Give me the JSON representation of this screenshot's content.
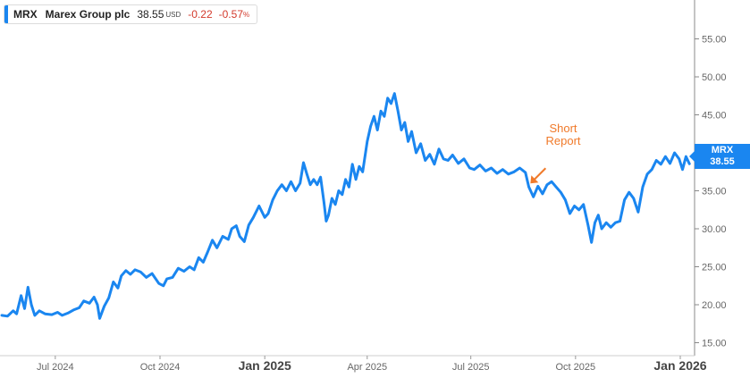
{
  "legend": {
    "ticker": "MRX",
    "name": "Marex Group plc",
    "price": "38.55",
    "currency": "USD",
    "change": "-0.22",
    "change_pct": "-0.57",
    "pct_sign": "%"
  },
  "price_tag": {
    "ticker": "MRX",
    "price": "38.55"
  },
  "annotation": {
    "line1": "Short",
    "line2": "Report",
    "date": "2025-08-20"
  },
  "colors": {
    "line": "#1a86f0",
    "annotation": "#f07a2a",
    "negative": "#d33a2c",
    "axis": "#666666"
  },
  "chart_data": {
    "type": "line",
    "title": "",
    "xlabel": "",
    "ylabel": "",
    "ylim": [
      14,
      58
    ],
    "xlim": [
      "2024-05-15",
      "2026-01-12"
    ],
    "y_axis_position": "right",
    "y_ticks": [
      "15.00",
      "20.00",
      "25.00",
      "30.00",
      "35.00",
      "40.00",
      "45.00",
      "50.00",
      "55.00"
    ],
    "x_ticks": [
      {
        "date": "2024-07-01",
        "label": "Jul 2024",
        "bold": false
      },
      {
        "date": "2024-10-01",
        "label": "Oct 2024",
        "bold": false
      },
      {
        "date": "2025-01-01",
        "label": "Jan 2025",
        "bold": true
      },
      {
        "date": "2025-04-01",
        "label": "Apr 2025",
        "bold": false
      },
      {
        "date": "2025-07-01",
        "label": "Jul 2025",
        "bold": false
      },
      {
        "date": "2025-10-01",
        "label": "Oct 2025",
        "bold": false
      },
      {
        "date": "2026-01-01",
        "label": "Jan 2026",
        "bold": true
      }
    ],
    "series": [
      {
        "name": "MRX",
        "points": [
          [
            "2024-05-15",
            18.6
          ],
          [
            "2024-05-20",
            18.5
          ],
          [
            "2024-05-25",
            19.2
          ],
          [
            "2024-05-28",
            18.8
          ],
          [
            "2024-06-01",
            21.2
          ],
          [
            "2024-06-04",
            19.5
          ],
          [
            "2024-06-07",
            22.3
          ],
          [
            "2024-06-10",
            20.0
          ],
          [
            "2024-06-13",
            18.6
          ],
          [
            "2024-06-17",
            19.2
          ],
          [
            "2024-06-22",
            18.8
          ],
          [
            "2024-06-28",
            18.7
          ],
          [
            "2024-07-03",
            19.0
          ],
          [
            "2024-07-07",
            18.6
          ],
          [
            "2024-07-12",
            18.9
          ],
          [
            "2024-07-17",
            19.3
          ],
          [
            "2024-07-22",
            19.6
          ],
          [
            "2024-07-26",
            20.5
          ],
          [
            "2024-07-31",
            20.2
          ],
          [
            "2024-08-04",
            21.0
          ],
          [
            "2024-08-07",
            20.0
          ],
          [
            "2024-08-09",
            18.2
          ],
          [
            "2024-08-13",
            19.8
          ],
          [
            "2024-08-17",
            20.9
          ],
          [
            "2024-08-21",
            23.0
          ],
          [
            "2024-08-25",
            22.2
          ],
          [
            "2024-08-28",
            23.8
          ],
          [
            "2024-09-01",
            24.5
          ],
          [
            "2024-09-05",
            24.0
          ],
          [
            "2024-09-09",
            24.6
          ],
          [
            "2024-09-14",
            24.3
          ],
          [
            "2024-09-19",
            23.6
          ],
          [
            "2024-09-24",
            24.1
          ],
          [
            "2024-09-30",
            22.8
          ],
          [
            "2024-10-04",
            22.5
          ],
          [
            "2024-10-07",
            23.4
          ],
          [
            "2024-10-12",
            23.6
          ],
          [
            "2024-10-17",
            24.8
          ],
          [
            "2024-10-22",
            24.4
          ],
          [
            "2024-10-27",
            25.0
          ],
          [
            "2024-10-31",
            24.6
          ],
          [
            "2024-11-04",
            26.2
          ],
          [
            "2024-11-08",
            25.6
          ],
          [
            "2024-11-12",
            27.0
          ],
          [
            "2024-11-16",
            28.5
          ],
          [
            "2024-11-20",
            27.5
          ],
          [
            "2024-11-25",
            29.0
          ],
          [
            "2024-11-30",
            28.6
          ],
          [
            "2024-12-03",
            30.0
          ],
          [
            "2024-12-07",
            30.4
          ],
          [
            "2024-12-10",
            29.0
          ],
          [
            "2024-12-14",
            28.3
          ],
          [
            "2024-12-18",
            30.5
          ],
          [
            "2024-12-22",
            31.5
          ],
          [
            "2024-12-27",
            33.0
          ],
          [
            "2025-01-01",
            31.5
          ],
          [
            "2025-01-04",
            32.0
          ],
          [
            "2025-01-08",
            33.8
          ],
          [
            "2025-01-12",
            35.0
          ],
          [
            "2025-01-16",
            35.8
          ],
          [
            "2025-01-20",
            35.0
          ],
          [
            "2025-01-24",
            36.2
          ],
          [
            "2025-01-28",
            35.0
          ],
          [
            "2025-02-01",
            36.0
          ],
          [
            "2025-02-04",
            38.7
          ],
          [
            "2025-02-07",
            37.2
          ],
          [
            "2025-02-10",
            35.8
          ],
          [
            "2025-02-13",
            36.5
          ],
          [
            "2025-02-16",
            35.8
          ],
          [
            "2025-02-19",
            36.8
          ],
          [
            "2025-02-22",
            33.5
          ],
          [
            "2025-02-24",
            31.0
          ],
          [
            "2025-02-26",
            31.8
          ],
          [
            "2025-03-01",
            34.0
          ],
          [
            "2025-03-04",
            33.2
          ],
          [
            "2025-03-07",
            35.0
          ],
          [
            "2025-03-10",
            34.5
          ],
          [
            "2025-03-13",
            36.5
          ],
          [
            "2025-03-16",
            35.5
          ],
          [
            "2025-03-19",
            38.5
          ],
          [
            "2025-03-22",
            36.5
          ],
          [
            "2025-03-25",
            38.2
          ],
          [
            "2025-03-28",
            37.5
          ],
          [
            "2025-04-01",
            41.5
          ],
          [
            "2025-04-04",
            43.5
          ],
          [
            "2025-04-07",
            44.8
          ],
          [
            "2025-04-10",
            43.0
          ],
          [
            "2025-04-13",
            45.5
          ],
          [
            "2025-04-16",
            44.8
          ],
          [
            "2025-04-19",
            47.2
          ],
          [
            "2025-04-22",
            46.5
          ],
          [
            "2025-04-25",
            47.8
          ],
          [
            "2025-04-28",
            45.5
          ],
          [
            "2025-05-01",
            43.0
          ],
          [
            "2025-05-04",
            44.0
          ],
          [
            "2025-05-07",
            41.5
          ],
          [
            "2025-05-10",
            42.8
          ],
          [
            "2025-05-14",
            40.0
          ],
          [
            "2025-05-18",
            41.2
          ],
          [
            "2025-05-22",
            39.0
          ],
          [
            "2025-05-26",
            39.8
          ],
          [
            "2025-05-30",
            38.5
          ],
          [
            "2025-06-03",
            40.5
          ],
          [
            "2025-06-07",
            39.2
          ],
          [
            "2025-06-11",
            39.0
          ],
          [
            "2025-06-15",
            39.7
          ],
          [
            "2025-06-20",
            38.6
          ],
          [
            "2025-06-25",
            39.2
          ],
          [
            "2025-06-30",
            38.0
          ],
          [
            "2025-07-04",
            37.8
          ],
          [
            "2025-07-09",
            38.4
          ],
          [
            "2025-07-14",
            37.6
          ],
          [
            "2025-07-19",
            38.0
          ],
          [
            "2025-07-24",
            37.3
          ],
          [
            "2025-07-29",
            37.8
          ],
          [
            "2025-08-03",
            37.2
          ],
          [
            "2025-08-08",
            37.5
          ],
          [
            "2025-08-13",
            38.0
          ],
          [
            "2025-08-18",
            37.4
          ],
          [
            "2025-08-21",
            35.5
          ],
          [
            "2025-08-25",
            34.2
          ],
          [
            "2025-08-29",
            35.6
          ],
          [
            "2025-09-02",
            34.6
          ],
          [
            "2025-09-06",
            35.8
          ],
          [
            "2025-09-10",
            36.2
          ],
          [
            "2025-09-14",
            35.5
          ],
          [
            "2025-09-18",
            34.8
          ],
          [
            "2025-09-22",
            33.8
          ],
          [
            "2025-09-26",
            32.0
          ],
          [
            "2025-09-30",
            33.0
          ],
          [
            "2025-10-04",
            32.5
          ],
          [
            "2025-10-08",
            33.2
          ],
          [
            "2025-10-12",
            30.5
          ],
          [
            "2025-10-15",
            28.2
          ],
          [
            "2025-10-18",
            30.8
          ],
          [
            "2025-10-21",
            31.8
          ],
          [
            "2025-10-24",
            30.0
          ],
          [
            "2025-10-28",
            30.8
          ],
          [
            "2025-11-01",
            30.2
          ],
          [
            "2025-11-05",
            30.8
          ],
          [
            "2025-11-09",
            31.0
          ],
          [
            "2025-11-13",
            33.8
          ],
          [
            "2025-11-17",
            34.8
          ],
          [
            "2025-11-21",
            34.0
          ],
          [
            "2025-11-25",
            32.2
          ],
          [
            "2025-11-29",
            35.5
          ],
          [
            "2025-12-03",
            37.2
          ],
          [
            "2025-12-07",
            37.8
          ],
          [
            "2025-12-11",
            39.0
          ],
          [
            "2025-12-15",
            38.5
          ],
          [
            "2025-12-19",
            39.5
          ],
          [
            "2025-12-23",
            38.6
          ],
          [
            "2025-12-27",
            40.0
          ],
          [
            "2025-12-31",
            39.2
          ],
          [
            "2026-01-03",
            37.8
          ],
          [
            "2026-01-06",
            39.5
          ],
          [
            "2026-01-09",
            38.55
          ]
        ]
      }
    ]
  }
}
